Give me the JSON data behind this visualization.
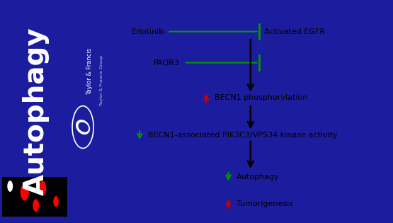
{
  "bg_color": "#1c1c9e",
  "panel_bg": "#ffffff",
  "arrow_color": "#000000",
  "inhibit_color": "#009900",
  "up_arrow_color": "#cc0000",
  "down_arrow_color": "#009900",
  "autophagy_fontsize": 28,
  "autophagy_color": "#ffffff",
  "journal_name": "Taylor & Francis",
  "journal_sub": "Taylor & Francis Group",
  "erl_label": "Erlotinib",
  "egfr_label": "Activated EGFR",
  "paqr_label": "PAQR3",
  "becn1_label": "BECN1 phosphorylation",
  "pik_label": "BECN1-associated PIK3C3/VPS34 kinase activity",
  "auto_label": "Autophagy",
  "tumor_label": "Tumorigenesis"
}
